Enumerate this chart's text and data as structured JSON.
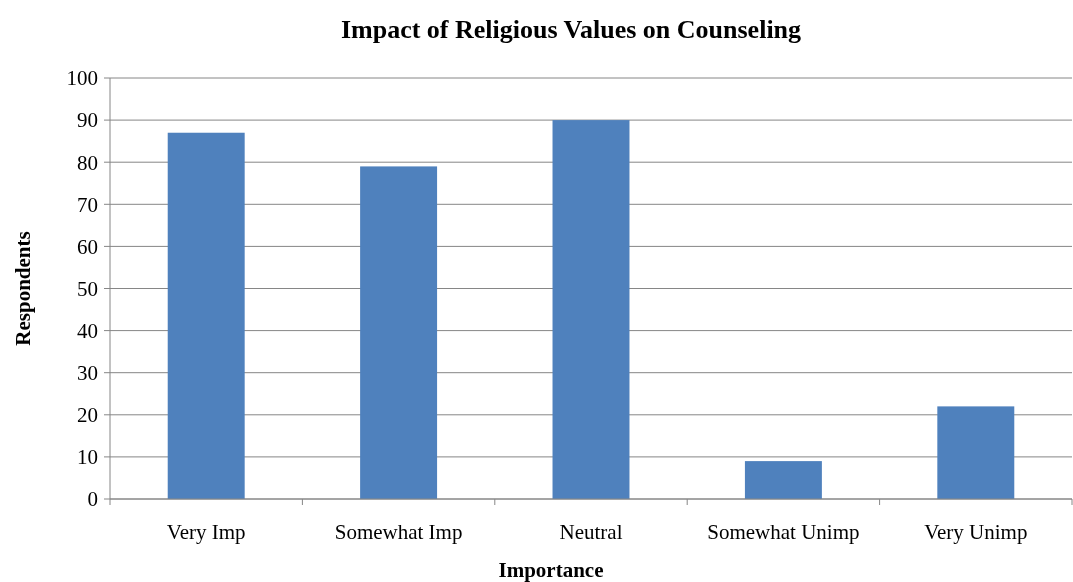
{
  "chart_data": {
    "type": "bar",
    "title": "Impact of Religious Values on Counseling",
    "xlabel": "Importance",
    "ylabel": "Respondents",
    "categories": [
      "Very Imp",
      "Somewhat Imp",
      "Neutral",
      "Somewhat Unimp",
      "Very Unimp"
    ],
    "values": [
      87,
      79,
      90,
      9,
      22
    ],
    "color": "#4f81bd",
    "ylim": [
      0,
      100
    ],
    "yticks": [
      0,
      10,
      20,
      30,
      40,
      50,
      60,
      70,
      80,
      90,
      100
    ],
    "grid": "y"
  }
}
